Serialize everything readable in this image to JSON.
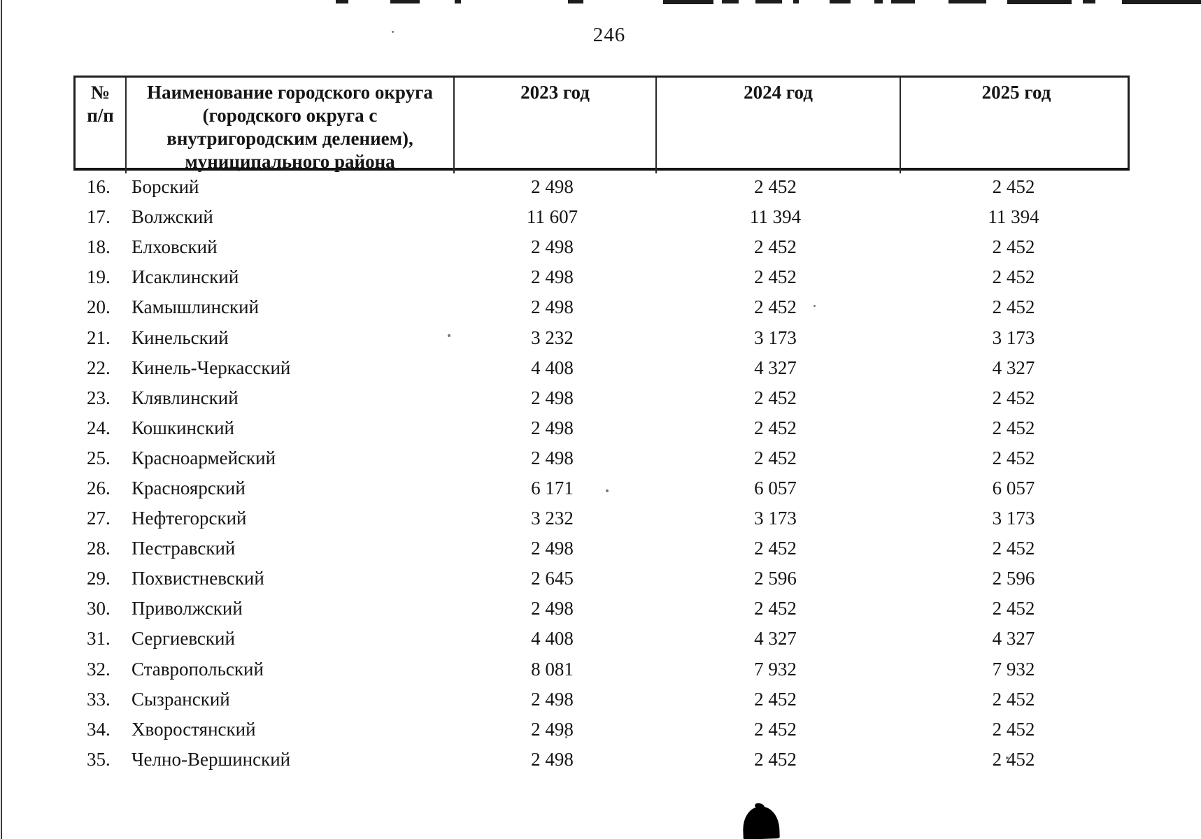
{
  "page": {
    "number": "246"
  },
  "table": {
    "headers": {
      "num_line1": "№",
      "num_line2": "п/п",
      "name_lines": [
        "Наименование городского округа",
        "(городского округа с",
        "внутригородским делением),",
        "муниципального района"
      ],
      "year_2023": "2023 год",
      "year_2024": "2024 год",
      "year_2025": "2025 год"
    },
    "rows": [
      {
        "num": "16.",
        "name": "Борский",
        "y2023": "2 498",
        "y2024": "2 452",
        "y2025": "2 452"
      },
      {
        "num": "17.",
        "name": "Волжский",
        "y2023": "11 607",
        "y2024": "11 394",
        "y2025": "11 394"
      },
      {
        "num": "18.",
        "name": "Елховский",
        "y2023": "2 498",
        "y2024": "2 452",
        "y2025": "2 452"
      },
      {
        "num": "19.",
        "name": "Исаклинский",
        "y2023": "2 498",
        "y2024": "2 452",
        "y2025": "2 452"
      },
      {
        "num": "20.",
        "name": "Камышлинский",
        "y2023": "2 498",
        "y2024": "2 452",
        "y2025": "2 452"
      },
      {
        "num": "21.",
        "name": "Кинельский",
        "y2023": "3 232",
        "y2024": "3 173",
        "y2025": "3 173"
      },
      {
        "num": "22.",
        "name": "Кинель-Черкасский",
        "y2023": "4 408",
        "y2024": "4 327",
        "y2025": "4 327"
      },
      {
        "num": "23.",
        "name": "Клявлинский",
        "y2023": "2 498",
        "y2024": "2 452",
        "y2025": "2 452"
      },
      {
        "num": "24.",
        "name": "Кошкинский",
        "y2023": "2 498",
        "y2024": "2 452",
        "y2025": "2 452"
      },
      {
        "num": "25.",
        "name": "Красноармейский",
        "y2023": "2 498",
        "y2024": "2 452",
        "y2025": "2 452"
      },
      {
        "num": "26.",
        "name": "Красноярский",
        "y2023": "6 171",
        "y2024": "6 057",
        "y2025": "6 057"
      },
      {
        "num": "27.",
        "name": "Нефтегорский",
        "y2023": "3 232",
        "y2024": "3 173",
        "y2025": "3 173"
      },
      {
        "num": "28.",
        "name": "Пестравский",
        "y2023": "2 498",
        "y2024": "2 452",
        "y2025": "2 452"
      },
      {
        "num": "29.",
        "name": "Похвистневский",
        "y2023": "2 645",
        "y2024": "2 596",
        "y2025": "2 596"
      },
      {
        "num": "30.",
        "name": "Приволжский",
        "y2023": "2 498",
        "y2024": "2 452",
        "y2025": "2 452"
      },
      {
        "num": "31.",
        "name": "Сергиевский",
        "y2023": "4 408",
        "y2024": "4 327",
        "y2025": "4 327"
      },
      {
        "num": "32.",
        "name": "Ставропольский",
        "y2023": "8 081",
        "y2024": "7 932",
        "y2025": "7 932"
      },
      {
        "num": "33.",
        "name": "Сызранский",
        "y2023": "2 498",
        "y2024": "2 452",
        "y2025": "2 452"
      },
      {
        "num": "34.",
        "name": "Хворостянский",
        "y2023": "2 498",
        "y2024": "2 452",
        "y2025": "2 452"
      },
      {
        "num": "35.",
        "name": "Челно-Вершинский",
        "y2023": "2 498",
        "y2024": "2 452",
        "y2025": "2 452"
      }
    ]
  }
}
